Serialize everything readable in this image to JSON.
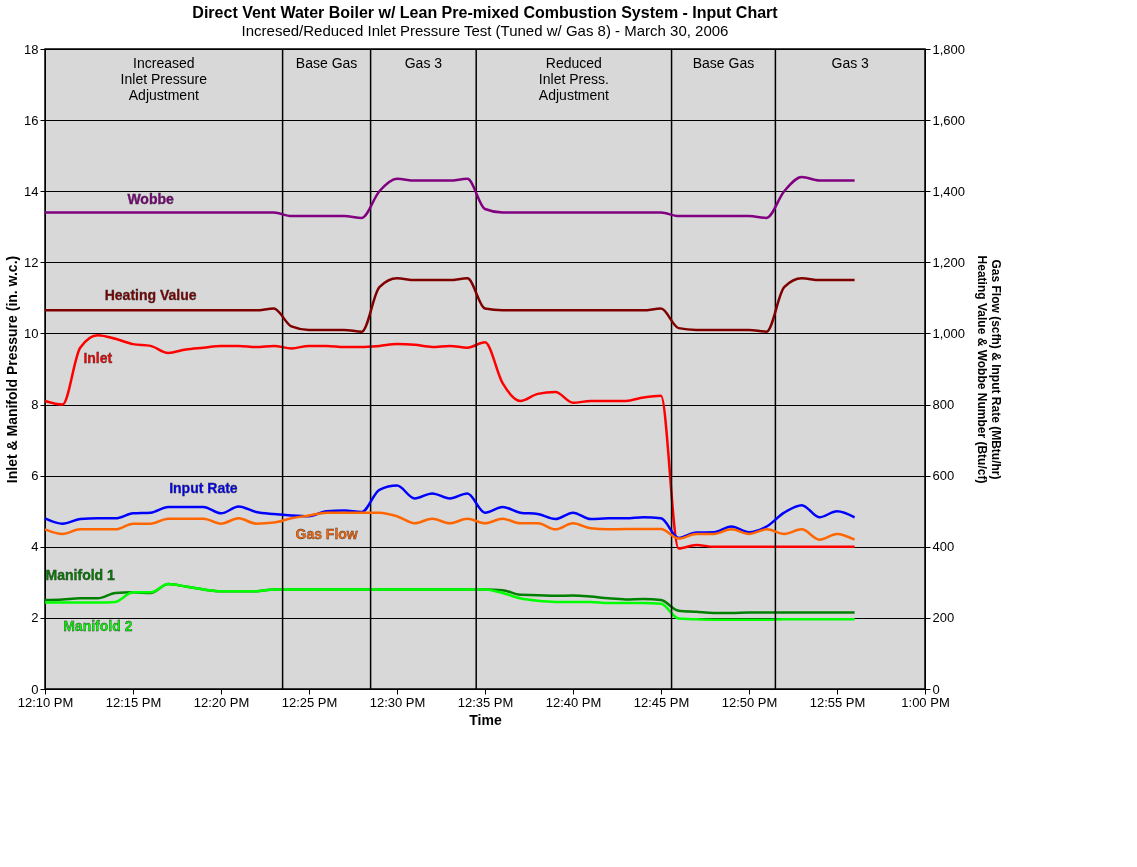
{
  "chart_data": {
    "type": "line",
    "title": "Direct Vent Water Boiler w/ Lean Pre-mixed Combustion System - Input Chart",
    "subtitle": "Incresed/Reduced Inlet Pressure Test (Tuned w/ Gas 8) - March 30, 2006",
    "xlabel": "Time",
    "ylabel": "Inlet & Manifold Pressure (in. w.c.)",
    "y2label": "Gas Flow (scfh) & Input Rate (MBtu/hr)\nHeating Value & Wobbe Number (Btu/cf)",
    "x": [
      "2006-03-30T12:10",
      "2006-03-30T12:11",
      "2006-03-30T12:12",
      "2006-03-30T12:13",
      "2006-03-30T12:14",
      "2006-03-30T12:15",
      "2006-03-30T12:16",
      "2006-03-30T12:17",
      "2006-03-30T12:18",
      "2006-03-30T12:19",
      "2006-03-30T12:20",
      "2006-03-30T12:21",
      "2006-03-30T12:22",
      "2006-03-30T12:23",
      "2006-03-30T12:24",
      "2006-03-30T12:25",
      "2006-03-30T12:26",
      "2006-03-30T12:27",
      "2006-03-30T12:28",
      "2006-03-30T12:29",
      "2006-03-30T12:30",
      "2006-03-30T12:31",
      "2006-03-30T12:32",
      "2006-03-30T12:33",
      "2006-03-30T12:34",
      "2006-03-30T12:35",
      "2006-03-30T12:36",
      "2006-03-30T12:37",
      "2006-03-30T12:38",
      "2006-03-30T12:39",
      "2006-03-30T12:40",
      "2006-03-30T12:41",
      "2006-03-30T12:42",
      "2006-03-30T12:43",
      "2006-03-30T12:44",
      "2006-03-30T12:45",
      "2006-03-30T12:46",
      "2006-03-30T12:47",
      "2006-03-30T12:48",
      "2006-03-30T12:49",
      "2006-03-30T12:50",
      "2006-03-30T12:51",
      "2006-03-30T12:52",
      "2006-03-30T12:53",
      "2006-03-30T12:54",
      "2006-03-30T12:55",
      "2006-03-30T12:56"
    ],
    "series": [
      {
        "name": "Wobbe",
        "color": "#800080",
        "axis": "y2",
        "values": [
          1340,
          1340,
          1340,
          1340,
          1340,
          1340,
          1340,
          1340,
          1340,
          1340,
          1340,
          1340,
          1340,
          1340,
          1330,
          1330,
          1330,
          1330,
          1325,
          1400,
          1435,
          1430,
          1430,
          1430,
          1435,
          1350,
          1340,
          1340,
          1340,
          1340,
          1340,
          1340,
          1340,
          1340,
          1340,
          1340,
          1330,
          1330,
          1330,
          1330,
          1330,
          1325,
          1400,
          1440,
          1430,
          1430,
          1430
        ]
      },
      {
        "name": "Heating Value",
        "color": "#800000",
        "axis": "y2",
        "values": [
          1065,
          1065,
          1065,
          1065,
          1065,
          1065,
          1065,
          1065,
          1065,
          1065,
          1065,
          1065,
          1065,
          1070,
          1020,
          1010,
          1010,
          1010,
          1005,
          1130,
          1155,
          1150,
          1150,
          1150,
          1155,
          1070,
          1065,
          1065,
          1065,
          1065,
          1065,
          1065,
          1065,
          1065,
          1065,
          1070,
          1015,
          1010,
          1010,
          1010,
          1010,
          1005,
          1130,
          1155,
          1150,
          1150,
          1150
        ]
      },
      {
        "name": "Inlet",
        "color": "#ff0000",
        "values": [
          8.1,
          8.0,
          9.6,
          9.95,
          9.85,
          9.7,
          9.65,
          9.45,
          9.55,
          9.6,
          9.65,
          9.65,
          9.62,
          9.65,
          9.58,
          9.65,
          9.65,
          9.62,
          9.62,
          9.65,
          9.7,
          9.68,
          9.62,
          9.65,
          9.6,
          9.75,
          8.6,
          8.1,
          8.3,
          8.35,
          8.05,
          8.1,
          8.1,
          8.1,
          8.2,
          8.25,
          3.95,
          4.05,
          4.0,
          4.0,
          4.0,
          4.0,
          4.0,
          4.0,
          4.0,
          4.0,
          4.0
        ]
      },
      {
        "name": "Input Rate",
        "color": "#0000ff",
        "axis": "y2",
        "values": [
          480,
          465,
          478,
          480,
          480,
          494,
          496,
          512,
          512,
          512,
          494,
          513,
          498,
          492,
          488,
          486,
          500,
          502,
          498,
          560,
          572,
          536,
          550,
          536,
          550,
          496,
          512,
          496,
          492,
          478,
          496,
          478,
          480,
          480,
          483,
          480,
          425,
          440,
          441,
          457,
          441,
          457,
          496,
          517,
          483,
          500,
          483
        ]
      },
      {
        "name": "Gas Flow",
        "color": "#ff6600",
        "axis": "y2",
        "values": [
          449,
          436,
          449,
          449,
          449,
          465,
          465,
          479,
          479,
          479,
          465,
          480,
          465,
          468,
          480,
          488,
          496,
          496,
          496,
          496,
          486,
          466,
          479,
          466,
          479,
          466,
          479,
          466,
          466,
          449,
          466,
          452,
          449,
          450,
          450,
          450,
          423,
          436,
          436,
          449,
          436,
          449,
          436,
          449,
          420,
          436,
          420
        ]
      },
      {
        "name": "Manifold 1",
        "color": "#008000",
        "values": [
          2.5,
          2.52,
          2.55,
          2.55,
          2.7,
          2.72,
          2.7,
          2.95,
          2.88,
          2.8,
          2.75,
          2.75,
          2.75,
          2.8,
          2.8,
          2.8,
          2.8,
          2.8,
          2.8,
          2.8,
          2.8,
          2.8,
          2.8,
          2.8,
          2.8,
          2.8,
          2.78,
          2.65,
          2.64,
          2.62,
          2.63,
          2.6,
          2.55,
          2.52,
          2.53,
          2.5,
          2.2,
          2.17,
          2.14,
          2.14,
          2.15,
          2.15,
          2.15,
          2.15,
          2.15,
          2.15,
          2.15
        ]
      },
      {
        "name": "Manifold 2",
        "color": "#00ff00",
        "values": [
          2.43,
          2.43,
          2.43,
          2.43,
          2.45,
          2.72,
          2.72,
          2.95,
          2.88,
          2.8,
          2.75,
          2.75,
          2.75,
          2.8,
          2.8,
          2.8,
          2.8,
          2.8,
          2.8,
          2.8,
          2.8,
          2.8,
          2.8,
          2.8,
          2.8,
          2.8,
          2.7,
          2.55,
          2.48,
          2.45,
          2.45,
          2.45,
          2.42,
          2.42,
          2.42,
          2.4,
          1.98,
          1.96,
          1.95,
          1.95,
          1.95,
          1.95,
          1.96,
          1.96,
          1.96,
          1.96,
          1.96
        ]
      }
    ],
    "xlim": [
      "2006-03-30T12:10",
      "2006-03-30T13:00"
    ],
    "xticks": [
      {
        "value": "2006-03-30T12:10",
        "label": "12:10 PM"
      },
      {
        "value": "2006-03-30T12:15",
        "label": "12:15 PM"
      },
      {
        "value": "2006-03-30T12:20",
        "label": "12:20 PM"
      },
      {
        "value": "2006-03-30T12:25",
        "label": "12:25 PM"
      },
      {
        "value": "2006-03-30T12:30",
        "label": "12:30 PM"
      },
      {
        "value": "2006-03-30T12:35",
        "label": "12:35 PM"
      },
      {
        "value": "2006-03-30T12:40",
        "label": "12:40 PM"
      },
      {
        "value": "2006-03-30T12:45",
        "label": "12:45 PM"
      },
      {
        "value": "2006-03-30T12:50",
        "label": "12:50 PM"
      },
      {
        "value": "2006-03-30T12:55",
        "label": "12:55 PM"
      },
      {
        "value": "2006-03-30T13:00",
        "label": "1:00 PM"
      }
    ],
    "ylim": [
      0,
      18
    ],
    "yticks": [
      0,
      2,
      4,
      6,
      8,
      10,
      12,
      14,
      16,
      18
    ],
    "y2lim": [
      0,
      1800
    ],
    "y2ticks": [
      0,
      200,
      400,
      600,
      800,
      {
        "value": 1000,
        "label": "1,000"
      },
      {
        "value": 1200,
        "label": "1,200"
      },
      {
        "value": 1400,
        "label": "1,400"
      },
      {
        "value": 1600,
        "label": "1,600"
      },
      {
        "value": 1800,
        "label": "1,800"
      }
    ],
    "ref_lines": [
      {
        "axis": "x",
        "value": "2006-03-30T12:23:30",
        "color": "#000000"
      },
      {
        "axis": "x",
        "value": "2006-03-30T12:28:30",
        "color": "#000000"
      },
      {
        "axis": "x",
        "value": "2006-03-30T12:34:30",
        "color": "#000000"
      },
      {
        "axis": "x",
        "value": "2006-03-30T12:45:36",
        "color": "#000000"
      },
      {
        "axis": "x",
        "value": "2006-03-30T12:51:30",
        "color": "#000000"
      }
    ],
    "annotations": [
      "Increased\nInlet Pressure\nAdjustment",
      "Base Gas",
      "Gas 3",
      "Reduced\nInlet Press.\nAdjustment",
      "Base Gas",
      "Gas 3"
    ],
    "grid": "y",
    "marker": "none",
    "line_style": "solid"
  }
}
